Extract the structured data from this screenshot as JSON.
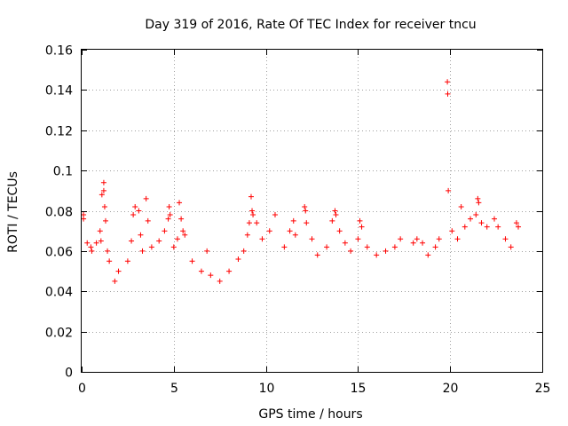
{
  "chart_data": {
    "type": "scatter",
    "title": "Day 319 of 2016, Rate Of TEC Index for receiver tncu",
    "xlabel": "GPS time / hours",
    "ylabel": "ROTI / TECUs",
    "xlim": [
      0,
      25
    ],
    "ylim": [
      0,
      0.16
    ],
    "x_ticks": [
      "0",
      "5",
      "10",
      "15",
      "20",
      "25"
    ],
    "y_ticks": [
      "0",
      "0.02",
      "0.04",
      "0.06",
      "0.08",
      "0.1",
      "0.12",
      "0.14",
      "0.16"
    ],
    "grid": true,
    "marker": "+",
    "color": "#ff0000",
    "series": [
      {
        "points": [
          [
            0.1,
            0.078
          ],
          [
            0.1,
            0.076
          ],
          [
            0.3,
            0.064
          ],
          [
            0.5,
            0.062
          ],
          [
            0.55,
            0.06
          ],
          [
            0.8,
            0.064
          ],
          [
            1.0,
            0.07
          ],
          [
            1.05,
            0.065
          ],
          [
            1.1,
            0.088
          ],
          [
            1.2,
            0.094
          ],
          [
            1.2,
            0.09
          ],
          [
            1.25,
            0.082
          ],
          [
            1.3,
            0.075
          ],
          [
            1.4,
            0.06
          ],
          [
            1.5,
            0.055
          ],
          [
            1.8,
            0.045
          ],
          [
            2.0,
            0.05
          ],
          [
            2.5,
            0.055
          ],
          [
            2.7,
            0.065
          ],
          [
            2.8,
            0.078
          ],
          [
            2.9,
            0.082
          ],
          [
            3.1,
            0.08
          ],
          [
            3.2,
            0.068
          ],
          [
            3.3,
            0.06
          ],
          [
            3.5,
            0.086
          ],
          [
            3.6,
            0.075
          ],
          [
            3.8,
            0.062
          ],
          [
            4.2,
            0.065
          ],
          [
            4.5,
            0.07
          ],
          [
            4.7,
            0.076
          ],
          [
            4.75,
            0.082
          ],
          [
            4.8,
            0.078
          ],
          [
            5.0,
            0.062
          ],
          [
            5.2,
            0.066
          ],
          [
            5.3,
            0.084
          ],
          [
            5.4,
            0.076
          ],
          [
            5.5,
            0.07
          ],
          [
            5.6,
            0.068
          ],
          [
            6.0,
            0.055
          ],
          [
            6.5,
            0.05
          ],
          [
            6.8,
            0.06
          ],
          [
            7.0,
            0.048
          ],
          [
            7.5,
            0.045
          ],
          [
            8.0,
            0.05
          ],
          [
            8.5,
            0.056
          ],
          [
            8.8,
            0.06
          ],
          [
            9.0,
            0.068
          ],
          [
            9.1,
            0.074
          ],
          [
            9.2,
            0.087
          ],
          [
            9.25,
            0.08
          ],
          [
            9.3,
            0.078
          ],
          [
            9.5,
            0.074
          ],
          [
            9.8,
            0.066
          ],
          [
            10.2,
            0.07
          ],
          [
            10.5,
            0.078
          ],
          [
            11.0,
            0.062
          ],
          [
            11.3,
            0.07
          ],
          [
            11.5,
            0.075
          ],
          [
            11.6,
            0.068
          ],
          [
            12.1,
            0.082
          ],
          [
            12.15,
            0.08
          ],
          [
            12.2,
            0.074
          ],
          [
            12.5,
            0.066
          ],
          [
            12.8,
            0.058
          ],
          [
            13.3,
            0.062
          ],
          [
            13.6,
            0.075
          ],
          [
            13.75,
            0.08
          ],
          [
            13.8,
            0.078
          ],
          [
            14.0,
            0.07
          ],
          [
            14.3,
            0.064
          ],
          [
            14.6,
            0.06
          ],
          [
            15.0,
            0.066
          ],
          [
            15.1,
            0.075
          ],
          [
            15.2,
            0.072
          ],
          [
            15.5,
            0.062
          ],
          [
            16.0,
            0.058
          ],
          [
            16.5,
            0.06
          ],
          [
            17.0,
            0.062
          ],
          [
            17.3,
            0.066
          ],
          [
            18.0,
            0.064
          ],
          [
            18.2,
            0.066
          ],
          [
            18.5,
            0.064
          ],
          [
            18.8,
            0.058
          ],
          [
            19.2,
            0.062
          ],
          [
            19.4,
            0.066
          ],
          [
            19.85,
            0.144
          ],
          [
            19.87,
            0.138
          ],
          [
            19.9,
            0.09
          ],
          [
            20.1,
            0.07
          ],
          [
            20.4,
            0.066
          ],
          [
            20.6,
            0.082
          ],
          [
            20.8,
            0.072
          ],
          [
            21.1,
            0.076
          ],
          [
            21.4,
            0.078
          ],
          [
            21.5,
            0.086
          ],
          [
            21.55,
            0.084
          ],
          [
            21.7,
            0.074
          ],
          [
            22.0,
            0.072
          ],
          [
            22.4,
            0.076
          ],
          [
            22.6,
            0.072
          ],
          [
            23.0,
            0.066
          ],
          [
            23.3,
            0.062
          ],
          [
            23.6,
            0.074
          ],
          [
            23.7,
            0.072
          ]
        ]
      }
    ]
  }
}
